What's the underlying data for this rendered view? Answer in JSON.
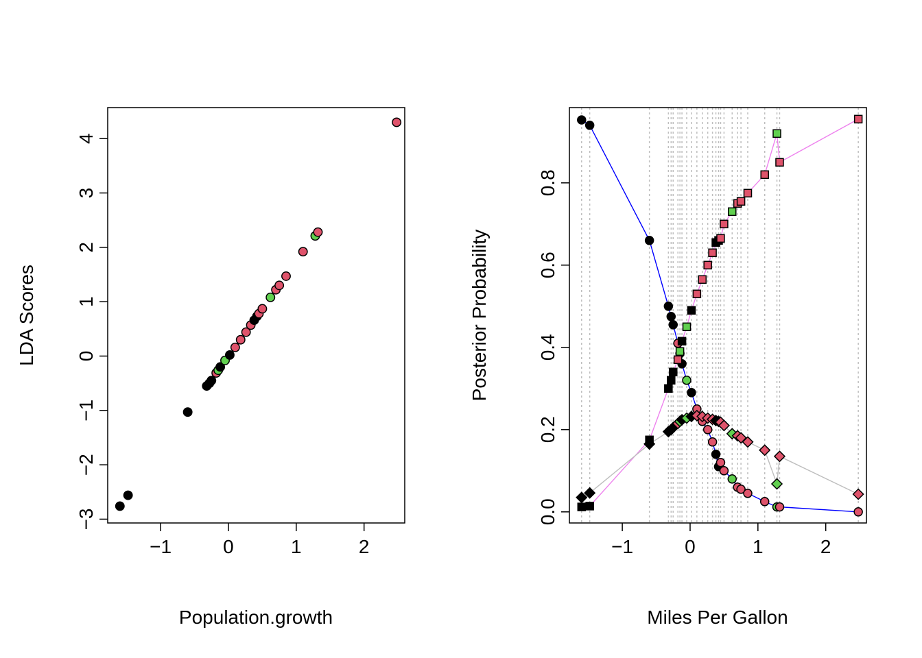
{
  "colors": {
    "black": "#000000",
    "red": "#DF536B",
    "green": "#61D04F",
    "blue": "#0000FF",
    "pink": "#EE82EE",
    "grey": "#BEBEBE",
    "vline": "#BEBEBE"
  },
  "chart_data": [
    {
      "type": "scatter",
      "xlabel": "Population.growth",
      "ylabel": "LDA Scores",
      "xlim": [
        -1.78,
        2.6
      ],
      "ylim": [
        -3.07,
        4.57
      ],
      "xticks": [
        -1,
        0,
        1,
        2
      ],
      "yticks": [
        -3,
        -2,
        -1,
        0,
        1,
        2,
        3,
        4
      ],
      "grid": false,
      "points": [
        {
          "x": -1.6,
          "y": -2.76,
          "c": "black"
        },
        {
          "x": -1.48,
          "y": -2.56,
          "c": "black"
        },
        {
          "x": -0.6,
          "y": -1.03,
          "c": "black"
        },
        {
          "x": -0.32,
          "y": -0.55,
          "c": "black"
        },
        {
          "x": -0.28,
          "y": -0.5,
          "c": "black"
        },
        {
          "x": -0.25,
          "y": -0.45,
          "c": "black"
        },
        {
          "x": -0.18,
          "y": -0.31,
          "c": "red"
        },
        {
          "x": -0.15,
          "y": -0.26,
          "c": "green"
        },
        {
          "x": -0.12,
          "y": -0.2,
          "c": "black"
        },
        {
          "x": -0.05,
          "y": -0.08,
          "c": "green"
        },
        {
          "x": 0.02,
          "y": 0.02,
          "c": "black"
        },
        {
          "x": 0.1,
          "y": 0.16,
          "c": "red"
        },
        {
          "x": 0.18,
          "y": 0.3,
          "c": "red"
        },
        {
          "x": 0.26,
          "y": 0.44,
          "c": "red"
        },
        {
          "x": 0.33,
          "y": 0.57,
          "c": "red"
        },
        {
          "x": 0.38,
          "y": 0.66,
          "c": "black"
        },
        {
          "x": 0.42,
          "y": 0.73,
          "c": "black"
        },
        {
          "x": 0.45,
          "y": 0.78,
          "c": "red"
        },
        {
          "x": 0.5,
          "y": 0.87,
          "c": "red"
        },
        {
          "x": 0.62,
          "y": 1.08,
          "c": "green"
        },
        {
          "x": 0.7,
          "y": 1.22,
          "c": "red"
        },
        {
          "x": 0.75,
          "y": 1.3,
          "c": "red"
        },
        {
          "x": 0.85,
          "y": 1.47,
          "c": "red"
        },
        {
          "x": 1.1,
          "y": 1.92,
          "c": "red"
        },
        {
          "x": 1.28,
          "y": 2.21,
          "c": "green"
        },
        {
          "x": 1.32,
          "y": 2.28,
          "c": "red"
        },
        {
          "x": 2.48,
          "y": 4.3,
          "c": "red"
        }
      ]
    },
    {
      "type": "line",
      "xlabel": "Miles Per Gallon",
      "ylabel": "Posterior Probability",
      "xlim": [
        -1.78,
        2.6
      ],
      "ylim": [
        -0.027,
        0.983
      ],
      "xticks": [
        -1,
        0,
        1,
        2
      ],
      "yticks": [
        0.0,
        0.2,
        0.4,
        0.6,
        0.8
      ],
      "ytick_labels": [
        "0.0",
        "0.2",
        "0.4",
        "0.6",
        "0.8"
      ],
      "vlines": [
        -1.6,
        -1.48,
        -0.6,
        -0.32,
        -0.28,
        -0.25,
        -0.18,
        -0.15,
        -0.12,
        -0.05,
        0.02,
        0.1,
        0.18,
        0.26,
        0.33,
        0.38,
        0.42,
        0.45,
        0.5,
        0.62,
        0.7,
        0.75,
        0.85,
        1.1,
        1.28,
        1.32,
        2.48
      ],
      "series": [
        {
          "line_color": "blue",
          "marker": "circle",
          "points": [
            [
              -1.6,
              0.953,
              "black"
            ],
            [
              -1.48,
              0.94,
              "black"
            ],
            [
              -0.6,
              0.66,
              "black"
            ],
            [
              -0.32,
              0.5,
              "black"
            ],
            [
              -0.28,
              0.475,
              "black"
            ],
            [
              -0.25,
              0.455,
              "black"
            ],
            [
              -0.18,
              0.41,
              "red"
            ],
            [
              -0.15,
              0.385,
              "green"
            ],
            [
              -0.12,
              0.36,
              "black"
            ],
            [
              -0.05,
              0.32,
              "green"
            ],
            [
              0.02,
              0.29,
              "black"
            ],
            [
              0.1,
              0.25,
              "red"
            ],
            [
              0.18,
              0.22,
              "red"
            ],
            [
              0.26,
              0.2,
              "red"
            ],
            [
              0.33,
              0.17,
              "red"
            ],
            [
              0.38,
              0.14,
              "black"
            ],
            [
              0.42,
              0.11,
              "black"
            ],
            [
              0.45,
              0.12,
              "red"
            ],
            [
              0.5,
              0.1,
              "red"
            ],
            [
              0.62,
              0.08,
              "green"
            ],
            [
              0.7,
              0.06,
              "red"
            ],
            [
              0.75,
              0.055,
              "red"
            ],
            [
              0.85,
              0.045,
              "red"
            ],
            [
              1.1,
              0.025,
              "red"
            ],
            [
              1.28,
              0.012,
              "green"
            ],
            [
              1.32,
              0.012,
              "red"
            ],
            [
              2.48,
              0.0,
              "red"
            ]
          ]
        },
        {
          "line_color": "pink",
          "marker": "square",
          "points": [
            [
              -1.6,
              0.012,
              "black"
            ],
            [
              -1.48,
              0.014,
              "black"
            ],
            [
              -0.6,
              0.175,
              "black"
            ],
            [
              -0.32,
              0.3,
              "black"
            ],
            [
              -0.28,
              0.32,
              "black"
            ],
            [
              -0.25,
              0.34,
              "black"
            ],
            [
              -0.18,
              0.37,
              "red"
            ],
            [
              -0.15,
              0.39,
              "green"
            ],
            [
              -0.12,
              0.415,
              "black"
            ],
            [
              -0.05,
              0.45,
              "green"
            ],
            [
              0.02,
              0.49,
              "black"
            ],
            [
              0.1,
              0.53,
              "red"
            ],
            [
              0.18,
              0.565,
              "red"
            ],
            [
              0.26,
              0.6,
              "red"
            ],
            [
              0.33,
              0.63,
              "red"
            ],
            [
              0.38,
              0.655,
              "black"
            ],
            [
              0.42,
              0.66,
              "black"
            ],
            [
              0.45,
              0.665,
              "red"
            ],
            [
              0.5,
              0.7,
              "red"
            ],
            [
              0.62,
              0.73,
              "green"
            ],
            [
              0.7,
              0.75,
              "red"
            ],
            [
              0.75,
              0.755,
              "red"
            ],
            [
              0.85,
              0.775,
              "red"
            ],
            [
              1.1,
              0.82,
              "red"
            ],
            [
              1.28,
              0.92,
              "green"
            ],
            [
              1.32,
              0.85,
              "red"
            ],
            [
              2.48,
              0.955,
              "red"
            ]
          ]
        },
        {
          "line_color": "grey",
          "marker": "diamond",
          "points": [
            [
              -1.6,
              0.035,
              "black"
            ],
            [
              -1.48,
              0.046,
              "black"
            ],
            [
              -0.6,
              0.165,
              "black"
            ],
            [
              -0.32,
              0.195,
              "black"
            ],
            [
              -0.28,
              0.2,
              "black"
            ],
            [
              -0.25,
              0.205,
              "black"
            ],
            [
              -0.18,
              0.215,
              "red"
            ],
            [
              -0.15,
              0.22,
              "green"
            ],
            [
              -0.12,
              0.224,
              "black"
            ],
            [
              -0.05,
              0.228,
              "green"
            ],
            [
              0.02,
              0.232,
              "black"
            ],
            [
              0.1,
              0.234,
              "red"
            ],
            [
              0.18,
              0.232,
              "red"
            ],
            [
              0.26,
              0.228,
              "red"
            ],
            [
              0.33,
              0.225,
              "red"
            ],
            [
              0.38,
              0.222,
              "black"
            ],
            [
              0.42,
              0.22,
              "black"
            ],
            [
              0.45,
              0.218,
              "red"
            ],
            [
              0.5,
              0.21,
              "red"
            ],
            [
              0.62,
              0.19,
              "green"
            ],
            [
              0.7,
              0.185,
              "red"
            ],
            [
              0.75,
              0.18,
              "red"
            ],
            [
              0.85,
              0.17,
              "red"
            ],
            [
              1.1,
              0.15,
              "red"
            ],
            [
              1.28,
              0.068,
              "green"
            ],
            [
              1.32,
              0.135,
              "red"
            ],
            [
              2.48,
              0.043,
              "red"
            ]
          ]
        }
      ]
    }
  ]
}
